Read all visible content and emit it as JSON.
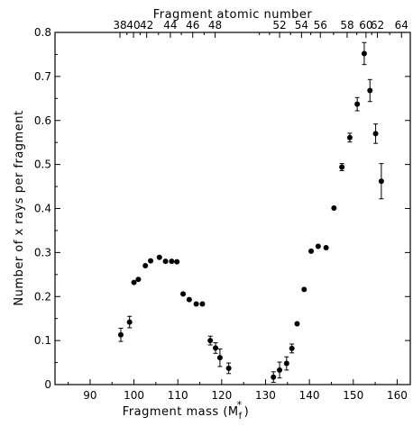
{
  "chart_data": {
    "type": "scatter",
    "title": "",
    "xlabel": "Fragment mass (M",
    "xlabel_symbol": "f",
    "xlabel_superscript": "*",
    "xlabel_close": ")",
    "ylabel": "Number of x rays per fragment",
    "top_xlabel": "Fragment atomic number",
    "xlim": [
      82,
      163
    ],
    "ylim": [
      0,
      0.8
    ],
    "xticks": [
      90,
      100,
      110,
      120,
      130,
      140,
      150,
      160
    ],
    "yticks": [
      0,
      0.1,
      0.2,
      0.3,
      0.4,
      0.5,
      0.6,
      0.7,
      0.8
    ],
    "ytick_labels": [
      "0",
      "0.1",
      "0.2",
      "0.3",
      "0.4",
      "0.5",
      "0.6",
      "0.7",
      "0.8"
    ],
    "top_ticks": [
      {
        "label": "38",
        "mass": 96.8
      },
      {
        "label": "40",
        "mass": 99.9
      },
      {
        "label": "42",
        "mass": 102.9
      },
      {
        "label": "44",
        "mass": 108.3
      },
      {
        "label": "46",
        "mass": 113.4
      },
      {
        "label": "48",
        "mass": 118.5
      },
      {
        "label": "52",
        "mass": 133.2
      },
      {
        "label": "54",
        "mass": 138.2
      },
      {
        "label": "56",
        "mass": 142.5
      },
      {
        "label": "58",
        "mass": 148.6
      },
      {
        "label": "60",
        "mass": 152.9
      },
      {
        "label": "62",
        "mass": 155.5
      },
      {
        "label": "64",
        "mass": 161.0
      }
    ],
    "top_minor_ticks": [
      98.4,
      101.4,
      105.6,
      110.8,
      116.0,
      128.6,
      130.9,
      135.7,
      140.3,
      145.5,
      150.8,
      154.2,
      158.3
    ],
    "grid": false,
    "legend": "none",
    "series": [
      {
        "points": [
          {
            "x": 97,
            "y": 0.113,
            "err": 0.015
          },
          {
            "x": 99,
            "y": 0.142,
            "err": 0.013
          },
          {
            "x": 100,
            "y": 0.232,
            "err": 0
          },
          {
            "x": 101,
            "y": 0.239,
            "err": 0
          },
          {
            "x": 102.6,
            "y": 0.27,
            "err": 0
          },
          {
            "x": 103.8,
            "y": 0.281,
            "err": 0
          },
          {
            "x": 105.8,
            "y": 0.289,
            "err": 0
          },
          {
            "x": 107.2,
            "y": 0.28,
            "err": 0
          },
          {
            "x": 108.6,
            "y": 0.28,
            "err": 0
          },
          {
            "x": 109.8,
            "y": 0.279,
            "err": 0
          },
          {
            "x": 111.2,
            "y": 0.206,
            "err": 0
          },
          {
            "x": 112.6,
            "y": 0.193,
            "err": 0
          },
          {
            "x": 114.2,
            "y": 0.183,
            "err": 0
          },
          {
            "x": 115.6,
            "y": 0.183,
            "err": 0
          },
          {
            "x": 117.4,
            "y": 0.1,
            "err": 0.01
          },
          {
            "x": 118.6,
            "y": 0.083,
            "err": 0.012
          },
          {
            "x": 119.6,
            "y": 0.061,
            "err": 0.02
          },
          {
            "x": 121.6,
            "y": 0.037,
            "err": 0.012
          },
          {
            "x": 131.8,
            "y": 0.017,
            "err": 0.012
          },
          {
            "x": 133.2,
            "y": 0.033,
            "err": 0.018
          },
          {
            "x": 134.8,
            "y": 0.048,
            "err": 0.015
          },
          {
            "x": 136,
            "y": 0.082,
            "err": 0.01
          },
          {
            "x": 137.2,
            "y": 0.138,
            "err": 0
          },
          {
            "x": 138.8,
            "y": 0.216,
            "err": 0
          },
          {
            "x": 140.4,
            "y": 0.303,
            "err": 0
          },
          {
            "x": 142,
            "y": 0.314,
            "err": 0
          },
          {
            "x": 143.8,
            "y": 0.311,
            "err": 0
          },
          {
            "x": 145.6,
            "y": 0.401,
            "err": 0
          },
          {
            "x": 147.4,
            "y": 0.494,
            "err": 0.008
          },
          {
            "x": 149.2,
            "y": 0.561,
            "err": 0.01
          },
          {
            "x": 150.9,
            "y": 0.637,
            "err": 0.015
          },
          {
            "x": 152.5,
            "y": 0.752,
            "err": 0.025
          },
          {
            "x": 153.8,
            "y": 0.668,
            "err": 0.025
          },
          {
            "x": 155.1,
            "y": 0.57,
            "err": 0.022
          },
          {
            "x": 156.4,
            "y": 0.462,
            "err": 0.04
          }
        ]
      }
    ]
  }
}
